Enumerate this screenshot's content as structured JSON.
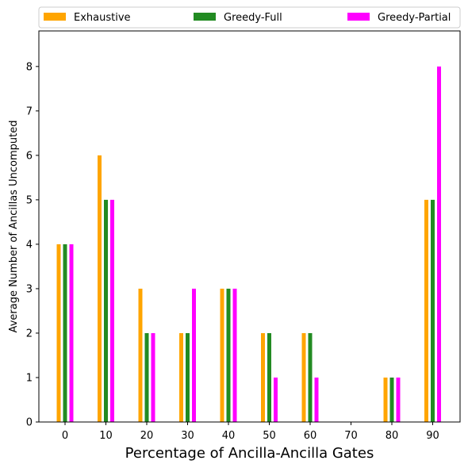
{
  "chart_data": {
    "type": "bar",
    "categories": [
      "0",
      "10",
      "20",
      "30",
      "40",
      "50",
      "60",
      "70",
      "80",
      "90"
    ],
    "series": [
      {
        "name": "Exhaustive",
        "color": "#FFA500",
        "values": [
          4,
          6,
          3,
          2,
          3,
          2,
          2,
          0,
          1,
          5
        ]
      },
      {
        "name": "Greedy-Full",
        "color": "#228B22",
        "values": [
          4,
          5,
          2,
          2,
          3,
          2,
          2,
          0,
          1,
          5
        ]
      },
      {
        "name": "Greedy-Partial",
        "color": "#FF00FF",
        "values": [
          4,
          5,
          2,
          3,
          3,
          1,
          1,
          0,
          1,
          8
        ]
      }
    ],
    "title": "",
    "xlabel": "Percentage of Ancilla-Ancilla Gates",
    "ylabel": "Average Number of Ancillas Uncomputed",
    "ylim": [
      0,
      8.8
    ],
    "yticks": [
      0,
      1,
      2,
      3,
      4,
      5,
      6,
      7,
      8
    ],
    "grid": false,
    "legend_placement": "top (above plot, 3 columns)"
  }
}
